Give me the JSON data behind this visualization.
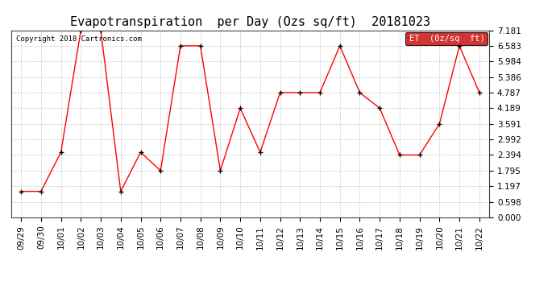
{
  "title": "Evapotranspiration  per Day (Ozs sq/ft)  20181023",
  "copyright": "Copyright 2018 Cartronics.com",
  "legend_label": "ET  (0z/sq  ft)",
  "x_labels": [
    "09/29",
    "09/30",
    "10/01",
    "10/02",
    "10/03",
    "10/04",
    "10/05",
    "10/06",
    "10/07",
    "10/08",
    "10/09",
    "10/10",
    "10/11",
    "10/12",
    "10/13",
    "10/14",
    "10/15",
    "10/16",
    "10/17",
    "10/18",
    "10/19",
    "10/20",
    "10/21",
    "10/22"
  ],
  "y_values": [
    1.0,
    1.0,
    2.5,
    7.181,
    7.181,
    1.0,
    2.5,
    1.795,
    6.583,
    6.583,
    1.795,
    4.189,
    2.5,
    4.787,
    4.787,
    4.787,
    6.583,
    4.787,
    4.189,
    2.394,
    2.394,
    3.591,
    6.583,
    4.787
  ],
  "ylim": [
    0.0,
    7.181
  ],
  "yticks": [
    0.0,
    0.598,
    1.197,
    1.795,
    2.394,
    2.992,
    3.591,
    4.189,
    4.787,
    5.386,
    5.984,
    6.583,
    7.181
  ],
  "line_color": "red",
  "marker_color": "black",
  "bg_color": "white",
  "grid_color": "#bbbbbb",
  "legend_bg": "#cc0000",
  "legend_text_color": "white",
  "title_fontsize": 11,
  "copyright_fontsize": 6.5,
  "tick_fontsize": 7.5,
  "legend_fontsize": 7.5
}
